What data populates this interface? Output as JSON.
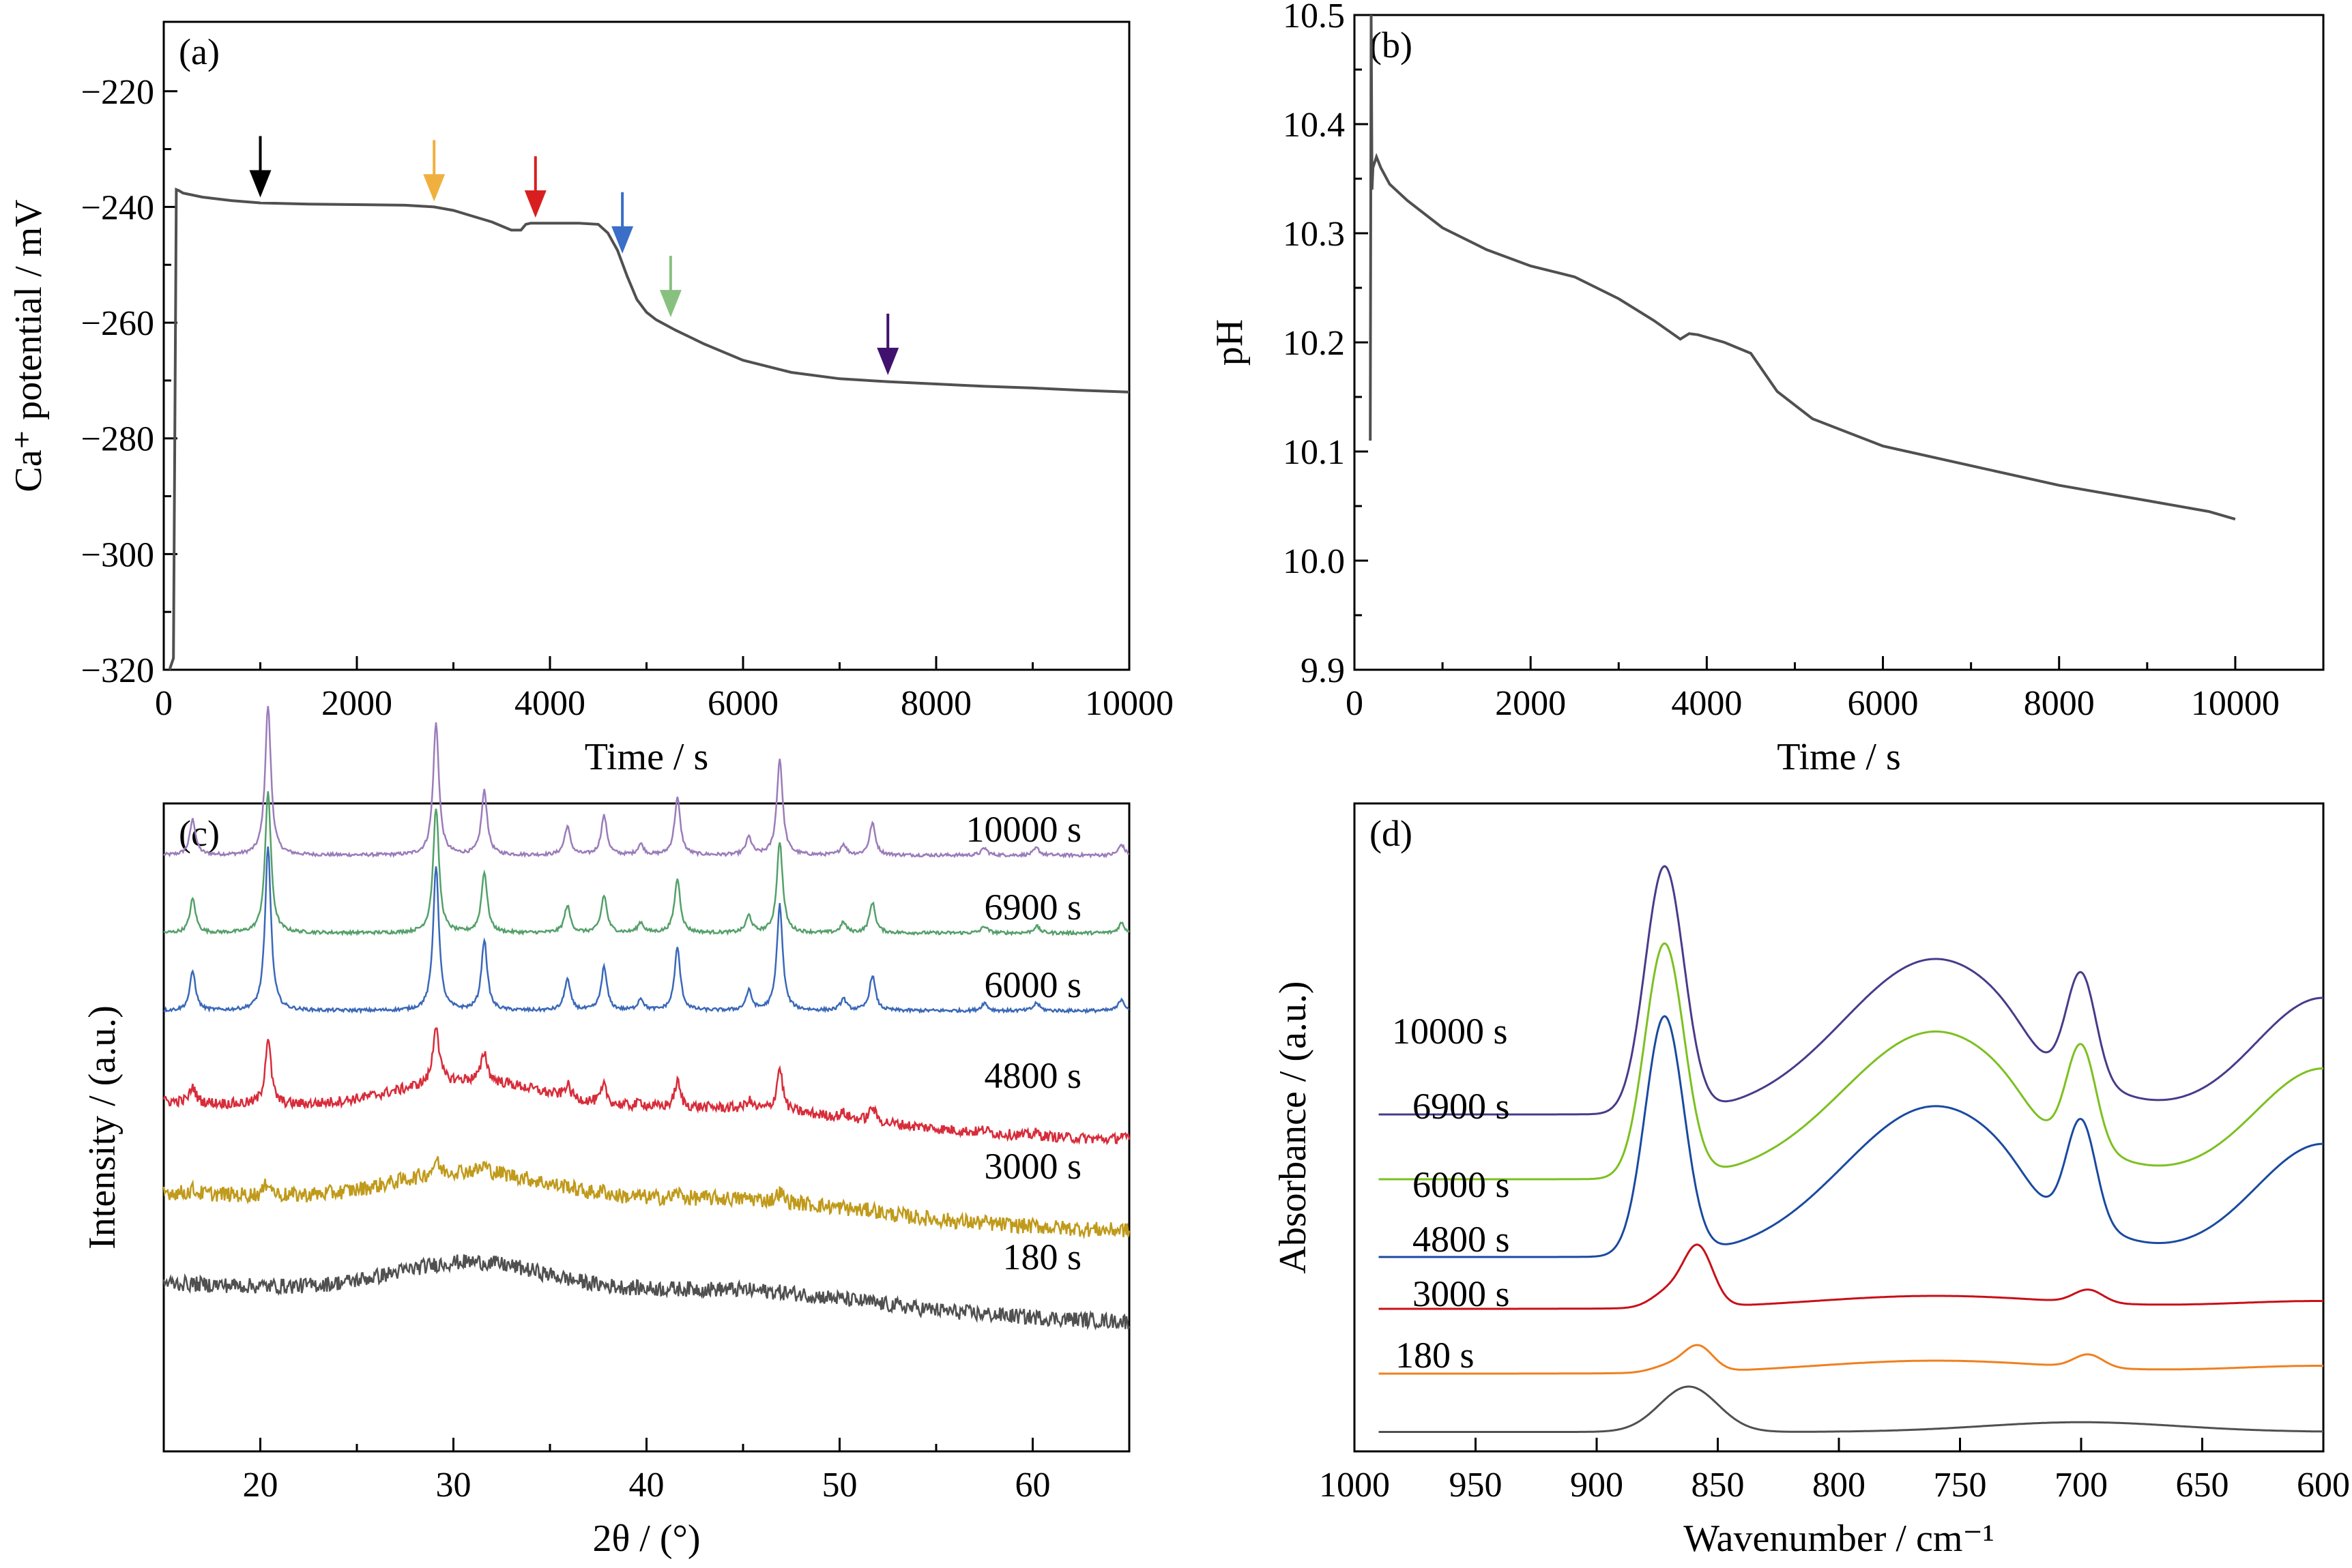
{
  "chart_data": [
    {
      "panel": "(a)",
      "type": "line",
      "xlabel": "Time / s",
      "ylabel": "Ca⁺ potential / mV",
      "xlim": [
        0,
        10000
      ],
      "ylim": [
        -320,
        -208
      ],
      "xticks": [
        0,
        2000,
        4000,
        6000,
        8000,
        10000
      ],
      "xtick_labels": [
        "0",
        "2000",
        "4000",
        "6000",
        "8000",
        "10000"
      ],
      "yticks": [
        -320,
        -300,
        -280,
        -260,
        -240,
        -220
      ],
      "ytick_labels": [
        "−320",
        "−300",
        "−280",
        "−260",
        "−240",
        "−220"
      ],
      "series": [
        {
          "color": "#505050",
          "x": [
            60,
            100,
            130,
            160,
            200,
            400,
            700,
            1000,
            1500,
            2000,
            2500,
            2800,
            3000,
            3200,
            3400,
            3600,
            3700,
            3750,
            3800,
            4000,
            4300,
            4500,
            4600,
            4700,
            4800,
            4900,
            5000,
            5100,
            5300,
            5600,
            6000,
            6500,
            7000,
            7500,
            8000,
            8500,
            9000,
            9500,
            10000
          ],
          "y": [
            -320,
            -318,
            -237,
            -237.2,
            -237.6,
            -238.3,
            -238.9,
            -239.3,
            -239.5,
            -239.6,
            -239.7,
            -240.0,
            -240.6,
            -241.6,
            -242.6,
            -244.0,
            -244.0,
            -243.0,
            -242.8,
            -242.8,
            -242.8,
            -243.0,
            -244.5,
            -247.5,
            -252.0,
            -256.0,
            -258.2,
            -259.5,
            -261.3,
            -263.7,
            -266.5,
            -268.6,
            -269.7,
            -270.2,
            -270.6,
            -271.0,
            -271.3,
            -271.7,
            -272.0
          ]
        }
      ],
      "arrows": [
        {
          "x": 1000,
          "y": -239.3,
          "color": "#000000"
        },
        {
          "x": 2800,
          "y": -240.0,
          "color": "#f0b040"
        },
        {
          "x": 3850,
          "y": -242.8,
          "color": "#d81e1e"
        },
        {
          "x": 4750,
          "y": -249.0,
          "color": "#3a6ec8"
        },
        {
          "x": 5250,
          "y": -260.0,
          "color": "#88c080"
        },
        {
          "x": 7500,
          "y": -270.0,
          "color": "#40126e"
        }
      ]
    },
    {
      "panel": "(b)",
      "type": "line",
      "xlabel": "Time / s",
      "ylabel": "pH",
      "xlim": [
        0,
        11000
      ],
      "ylim": [
        9.9,
        10.5
      ],
      "xticks": [
        0,
        2000,
        4000,
        6000,
        8000,
        10000
      ],
      "xtick_labels": [
        "0",
        "2000",
        "4000",
        "6000",
        "8000",
        "10000"
      ],
      "yticks": [
        9.9,
        10.0,
        10.1,
        10.2,
        10.3,
        10.4,
        10.5
      ],
      "ytick_labels": [
        "9.9",
        "10.0",
        "10.1",
        "10.2",
        "10.3",
        "10.4",
        "10.5"
      ],
      "series": [
        {
          "color": "#505050",
          "x": [
            180,
            190,
            200,
            210,
            250,
            300,
            400,
            600,
            1000,
            1500,
            2000,
            2500,
            3000,
            3400,
            3700,
            3800,
            3900,
            4200,
            4500,
            4800,
            5200,
            6000,
            7000,
            8000,
            9000,
            9700,
            10000
          ],
          "y": [
            10.11,
            10.5,
            10.34,
            10.36,
            10.37,
            10.36,
            10.345,
            10.33,
            10.305,
            10.285,
            10.27,
            10.26,
            10.24,
            10.22,
            10.203,
            10.208,
            10.207,
            10.2,
            10.19,
            10.155,
            10.13,
            10.105,
            10.087,
            10.069,
            10.055,
            10.045,
            10.038
          ]
        }
      ]
    },
    {
      "panel": "(c)",
      "type": "line",
      "xlabel": "2θ / (°)",
      "ylabel": "Intensity / (a.u.)",
      "xlim": [
        15,
        65
      ],
      "xticks": [
        20,
        30,
        40,
        50,
        60
      ],
      "xtick_labels": [
        "20",
        "30",
        "40",
        "50",
        "60"
      ],
      "series": [
        {
          "name": "10000 s",
          "color": "#9b7cba",
          "kind": "crystal",
          "base": 92,
          "scale": 1.0
        },
        {
          "name": "6900 s",
          "color": "#54a06a",
          "kind": "crystal",
          "base": 80,
          "scale": 0.95
        },
        {
          "name": "6000 s",
          "color": "#3a68b8",
          "kind": "crystal",
          "base": 68,
          "scale": 1.1
        },
        {
          "name": "4800 s",
          "color": "#d82c3a",
          "kind": "mixed",
          "base": 54,
          "scale": 0.45
        },
        {
          "name": "3000 s",
          "color": "#c09a1a",
          "kind": "amorphous",
          "base": 40,
          "scale": 0.1
        },
        {
          "name": "180 s",
          "color": "#505050",
          "kind": "amorphous",
          "base": 26,
          "scale": 0.0
        }
      ]
    },
    {
      "panel": "(d)",
      "type": "line",
      "xlabel": "Wavenumber / cm⁻¹",
      "ylabel": "Absorbance / (a.u.)",
      "xlim": [
        1000,
        600
      ],
      "xticks": [
        1000,
        950,
        900,
        850,
        800,
        750,
        700,
        650,
        600
      ],
      "xtick_labels": [
        "1000",
        "950",
        "900",
        "850",
        "800",
        "750",
        "700",
        "650",
        "600"
      ],
      "series": [
        {
          "name": "10000 s",
          "color": "#4a3a8a",
          "kind": "crystal",
          "base": 52,
          "scale": 1.0
        },
        {
          "name": "6900 s",
          "color": "#7cc020",
          "kind": "crystal",
          "base": 42,
          "scale": 0.95
        },
        {
          "name": "6000 s",
          "color": "#1a4aa0",
          "kind": "crystal",
          "base": 30,
          "scale": 0.97
        },
        {
          "name": "4800 s",
          "color": "#c81018",
          "kind": "mixed",
          "base": 22,
          "scale": 0.28
        },
        {
          "name": "3000 s",
          "color": "#f08020",
          "kind": "mixed",
          "base": 12,
          "scale": 0.12
        },
        {
          "name": "180 s",
          "color": "#505050",
          "kind": "amorphous",
          "base": 3,
          "scale": 0.0
        }
      ]
    }
  ]
}
